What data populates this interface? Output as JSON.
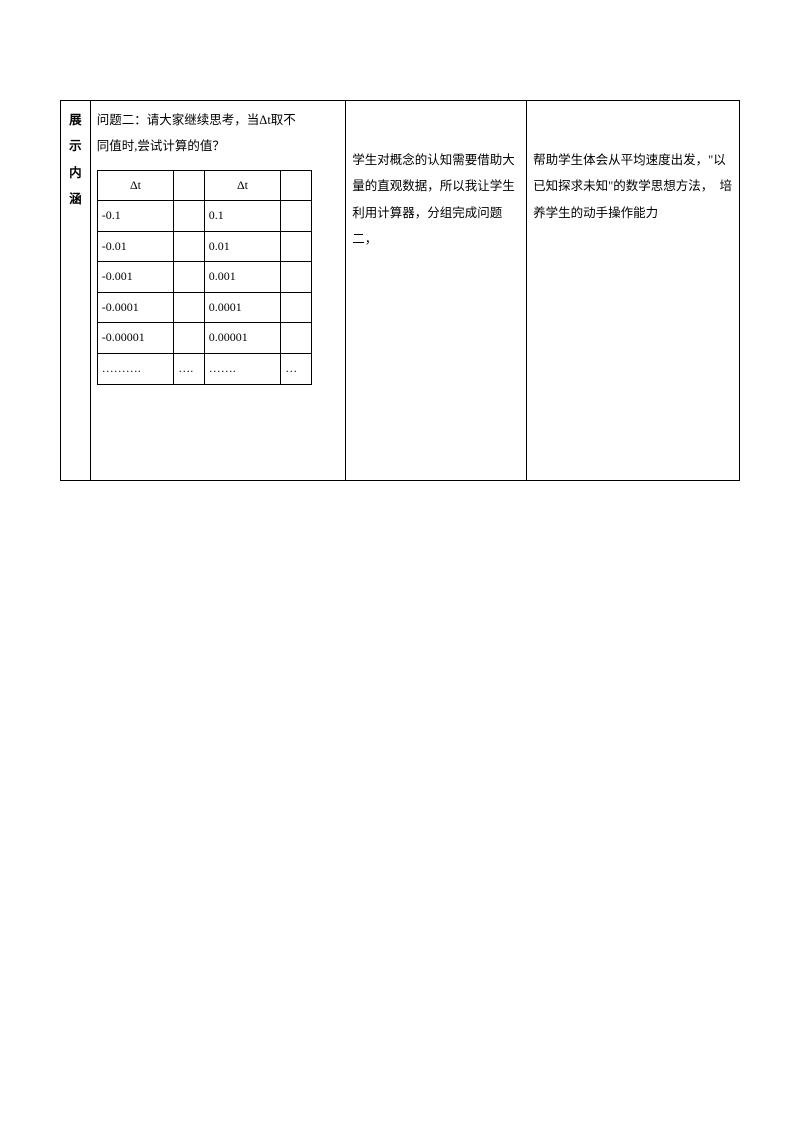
{
  "col1": {
    "c1": "展",
    "c2": "示",
    "c3": "内",
    "c4": "涵"
  },
  "question": {
    "line1": "问题二：请大家继续思考，当Δt取不",
    "line2": "同值时,尝试计算的值？"
  },
  "inner": {
    "h1": "Δt",
    "h2": "Δt",
    "rows": [
      {
        "a": "-0.1",
        "b": "",
        "c": "0.1",
        "d": ""
      },
      {
        "a": "-0.01",
        "b": "",
        "c": "0.01",
        "d": ""
      },
      {
        "a": "-0.001",
        "b": "",
        "c": "0.001",
        "d": ""
      },
      {
        "a": "-0.0001",
        "b": "",
        "c": "0.0001",
        "d": ""
      },
      {
        "a": "-0.00001",
        "b": "",
        "c": "0.00001",
        "d": ""
      },
      {
        "a": "……….",
        "b": "….",
        "c": "…….",
        "d": "…"
      }
    ]
  },
  "col3text": "学生对概念的认知需要借助大量的直观数据，所以我让学生利用计算器，分组完成问题二，",
  "col4text": "帮助学生体会从平均速度出发，\"以已知探求未知\"的数学思想方法，　培养学生的动手操作能力"
}
